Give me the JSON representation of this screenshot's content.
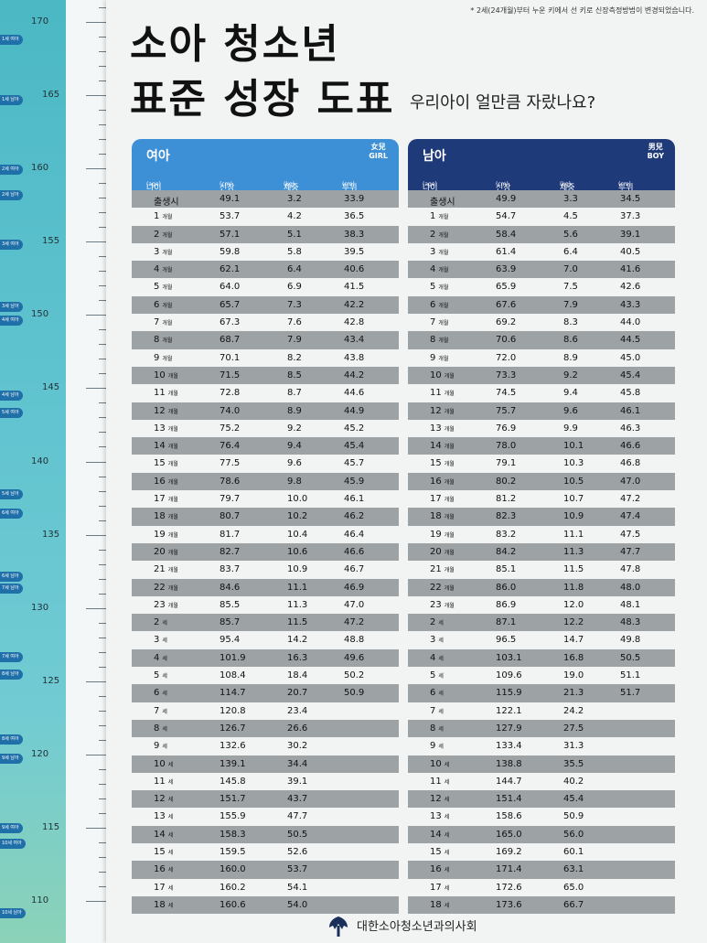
{
  "note": "* 2세(24개월)부터 누운 키에서 선 키로 신장측정방법이 변경되었습니다.",
  "title_line1": "소아 청소년",
  "title_line2": "표준 성장 도표",
  "subtitle": "우리아이 얼만큼 자랐나요?",
  "ruler": {
    "labels": [
      "170",
      "165",
      "160",
      "155",
      "150",
      "145",
      "140",
      "135",
      "130",
      "125",
      "120",
      "115",
      "110"
    ],
    "tags": [
      "1세 여아",
      "1세 남아",
      "2세 여아",
      "2세 남아",
      "3세 여아",
      "3세 남아",
      "4세 여아",
      "4세 남아",
      "5세 여아",
      "5세 남아",
      "6세 여아",
      "6세 남아",
      "7세 남아",
      "7세 여아",
      "8세 남아",
      "8세 여아",
      "9세 남아",
      "9세 여아",
      "10세 여아",
      "10세 남아"
    ]
  },
  "columns": {
    "age": "나이",
    "age_unit": "(age)",
    "height": "신장",
    "height_unit": "(cm)",
    "weight": "체중",
    "weight_unit": "(kg)",
    "head": "두위",
    "head_unit": "(cm)"
  },
  "girl": {
    "title": "여아",
    "hanja": "女兒",
    "en": "GIRL",
    "rows": [
      {
        "age": "출생시",
        "unit": "",
        "height": "49.1",
        "weight": "3.2",
        "head": "33.9"
      },
      {
        "age": "1",
        "unit": "개월",
        "height": "53.7",
        "weight": "4.2",
        "head": "36.5"
      },
      {
        "age": "2",
        "unit": "개월",
        "height": "57.1",
        "weight": "5.1",
        "head": "38.3"
      },
      {
        "age": "3",
        "unit": "개월",
        "height": "59.8",
        "weight": "5.8",
        "head": "39.5"
      },
      {
        "age": "4",
        "unit": "개월",
        "height": "62.1",
        "weight": "6.4",
        "head": "40.6"
      },
      {
        "age": "5",
        "unit": "개월",
        "height": "64.0",
        "weight": "6.9",
        "head": "41.5"
      },
      {
        "age": "6",
        "unit": "개월",
        "height": "65.7",
        "weight": "7.3",
        "head": "42.2"
      },
      {
        "age": "7",
        "unit": "개월",
        "height": "67.3",
        "weight": "7.6",
        "head": "42.8"
      },
      {
        "age": "8",
        "unit": "개월",
        "height": "68.7",
        "weight": "7.9",
        "head": "43.4"
      },
      {
        "age": "9",
        "unit": "개월",
        "height": "70.1",
        "weight": "8.2",
        "head": "43.8"
      },
      {
        "age": "10",
        "unit": "개월",
        "height": "71.5",
        "weight": "8.5",
        "head": "44.2"
      },
      {
        "age": "11",
        "unit": "개월",
        "height": "72.8",
        "weight": "8.7",
        "head": "44.6"
      },
      {
        "age": "12",
        "unit": "개월",
        "height": "74.0",
        "weight": "8.9",
        "head": "44.9"
      },
      {
        "age": "13",
        "unit": "개월",
        "height": "75.2",
        "weight": "9.2",
        "head": "45.2"
      },
      {
        "age": "14",
        "unit": "개월",
        "height": "76.4",
        "weight": "9.4",
        "head": "45.4"
      },
      {
        "age": "15",
        "unit": "개월",
        "height": "77.5",
        "weight": "9.6",
        "head": "45.7"
      },
      {
        "age": "16",
        "unit": "개월",
        "height": "78.6",
        "weight": "9.8",
        "head": "45.9"
      },
      {
        "age": "17",
        "unit": "개월",
        "height": "79.7",
        "weight": "10.0",
        "head": "46.1"
      },
      {
        "age": "18",
        "unit": "개월",
        "height": "80.7",
        "weight": "10.2",
        "head": "46.2"
      },
      {
        "age": "19",
        "unit": "개월",
        "height": "81.7",
        "weight": "10.4",
        "head": "46.4"
      },
      {
        "age": "20",
        "unit": "개월",
        "height": "82.7",
        "weight": "10.6",
        "head": "46.6"
      },
      {
        "age": "21",
        "unit": "개월",
        "height": "83.7",
        "weight": "10.9",
        "head": "46.7"
      },
      {
        "age": "22",
        "unit": "개월",
        "height": "84.6",
        "weight": "11.1",
        "head": "46.9"
      },
      {
        "age": "23",
        "unit": "개월",
        "height": "85.5",
        "weight": "11.3",
        "head": "47.0"
      },
      {
        "age": "2",
        "unit": "세",
        "height": "85.7",
        "weight": "11.5",
        "head": "47.2"
      },
      {
        "age": "3",
        "unit": "세",
        "height": "95.4",
        "weight": "14.2",
        "head": "48.8"
      },
      {
        "age": "4",
        "unit": "세",
        "height": "101.9",
        "weight": "16.3",
        "head": "49.6"
      },
      {
        "age": "5",
        "unit": "세",
        "height": "108.4",
        "weight": "18.4",
        "head": "50.2"
      },
      {
        "age": "6",
        "unit": "세",
        "height": "114.7",
        "weight": "20.7",
        "head": "50.9"
      },
      {
        "age": "7",
        "unit": "세",
        "height": "120.8",
        "weight": "23.4",
        "head": ""
      },
      {
        "age": "8",
        "unit": "세",
        "height": "126.7",
        "weight": "26.6",
        "head": ""
      },
      {
        "age": "9",
        "unit": "세",
        "height": "132.6",
        "weight": "30.2",
        "head": ""
      },
      {
        "age": "10",
        "unit": "세",
        "height": "139.1",
        "weight": "34.4",
        "head": ""
      },
      {
        "age": "11",
        "unit": "세",
        "height": "145.8",
        "weight": "39.1",
        "head": ""
      },
      {
        "age": "12",
        "unit": "세",
        "height": "151.7",
        "weight": "43.7",
        "head": ""
      },
      {
        "age": "13",
        "unit": "세",
        "height": "155.9",
        "weight": "47.7",
        "head": ""
      },
      {
        "age": "14",
        "unit": "세",
        "height": "158.3",
        "weight": "50.5",
        "head": ""
      },
      {
        "age": "15",
        "unit": "세",
        "height": "159.5",
        "weight": "52.6",
        "head": ""
      },
      {
        "age": "16",
        "unit": "세",
        "height": "160.0",
        "weight": "53.7",
        "head": ""
      },
      {
        "age": "17",
        "unit": "세",
        "height": "160.2",
        "weight": "54.1",
        "head": ""
      },
      {
        "age": "18",
        "unit": "세",
        "height": "160.6",
        "weight": "54.0",
        "head": ""
      }
    ]
  },
  "boy": {
    "title": "남아",
    "hanja": "男兒",
    "en": "BOY",
    "rows": [
      {
        "age": "출생시",
        "unit": "",
        "height": "49.9",
        "weight": "3.3",
        "head": "34.5"
      },
      {
        "age": "1",
        "unit": "개월",
        "height": "54.7",
        "weight": "4.5",
        "head": "37.3"
      },
      {
        "age": "2",
        "unit": "개월",
        "height": "58.4",
        "weight": "5.6",
        "head": "39.1"
      },
      {
        "age": "3",
        "unit": "개월",
        "height": "61.4",
        "weight": "6.4",
        "head": "40.5"
      },
      {
        "age": "4",
        "unit": "개월",
        "height": "63.9",
        "weight": "7.0",
        "head": "41.6"
      },
      {
        "age": "5",
        "unit": "개월",
        "height": "65.9",
        "weight": "7.5",
        "head": "42.6"
      },
      {
        "age": "6",
        "unit": "개월",
        "height": "67.6",
        "weight": "7.9",
        "head": "43.3"
      },
      {
        "age": "7",
        "unit": "개월",
        "height": "69.2",
        "weight": "8.3",
        "head": "44.0"
      },
      {
        "age": "8",
        "unit": "개월",
        "height": "70.6",
        "weight": "8.6",
        "head": "44.5"
      },
      {
        "age": "9",
        "unit": "개월",
        "height": "72.0",
        "weight": "8.9",
        "head": "45.0"
      },
      {
        "age": "10",
        "unit": "개월",
        "height": "73.3",
        "weight": "9.2",
        "head": "45.4"
      },
      {
        "age": "11",
        "unit": "개월",
        "height": "74.5",
        "weight": "9.4",
        "head": "45.8"
      },
      {
        "age": "12",
        "unit": "개월",
        "height": "75.7",
        "weight": "9.6",
        "head": "46.1"
      },
      {
        "age": "13",
        "unit": "개월",
        "height": "76.9",
        "weight": "9.9",
        "head": "46.3"
      },
      {
        "age": "14",
        "unit": "개월",
        "height": "78.0",
        "weight": "10.1",
        "head": "46.6"
      },
      {
        "age": "15",
        "unit": "개월",
        "height": "79.1",
        "weight": "10.3",
        "head": "46.8"
      },
      {
        "age": "16",
        "unit": "개월",
        "height": "80.2",
        "weight": "10.5",
        "head": "47.0"
      },
      {
        "age": "17",
        "unit": "개월",
        "height": "81.2",
        "weight": "10.7",
        "head": "47.2"
      },
      {
        "age": "18",
        "unit": "개월",
        "height": "82.3",
        "weight": "10.9",
        "head": "47.4"
      },
      {
        "age": "19",
        "unit": "개월",
        "height": "83.2",
        "weight": "11.1",
        "head": "47.5"
      },
      {
        "age": "20",
        "unit": "개월",
        "height": "84.2",
        "weight": "11.3",
        "head": "47.7"
      },
      {
        "age": "21",
        "unit": "개월",
        "height": "85.1",
        "weight": "11.5",
        "head": "47.8"
      },
      {
        "age": "22",
        "unit": "개월",
        "height": "86.0",
        "weight": "11.8",
        "head": "48.0"
      },
      {
        "age": "23",
        "unit": "개월",
        "height": "86.9",
        "weight": "12.0",
        "head": "48.1"
      },
      {
        "age": "2",
        "unit": "세",
        "height": "87.1",
        "weight": "12.2",
        "head": "48.3"
      },
      {
        "age": "3",
        "unit": "세",
        "height": "96.5",
        "weight": "14.7",
        "head": "49.8"
      },
      {
        "age": "4",
        "unit": "세",
        "height": "103.1",
        "weight": "16.8",
        "head": "50.5"
      },
      {
        "age": "5",
        "unit": "세",
        "height": "109.6",
        "weight": "19.0",
        "head": "51.1"
      },
      {
        "age": "6",
        "unit": "세",
        "height": "115.9",
        "weight": "21.3",
        "head": "51.7"
      },
      {
        "age": "7",
        "unit": "세",
        "height": "122.1",
        "weight": "24.2",
        "head": ""
      },
      {
        "age": "8",
        "unit": "세",
        "height": "127.9",
        "weight": "27.5",
        "head": ""
      },
      {
        "age": "9",
        "unit": "세",
        "height": "133.4",
        "weight": "31.3",
        "head": ""
      },
      {
        "age": "10",
        "unit": "세",
        "height": "138.8",
        "weight": "35.5",
        "head": ""
      },
      {
        "age": "11",
        "unit": "세",
        "height": "144.7",
        "weight": "40.2",
        "head": ""
      },
      {
        "age": "12",
        "unit": "세",
        "height": "151.4",
        "weight": "45.4",
        "head": ""
      },
      {
        "age": "13",
        "unit": "세",
        "height": "158.6",
        "weight": "50.9",
        "head": ""
      },
      {
        "age": "14",
        "unit": "세",
        "height": "165.0",
        "weight": "56.0",
        "head": ""
      },
      {
        "age": "15",
        "unit": "세",
        "height": "169.2",
        "weight": "60.1",
        "head": ""
      },
      {
        "age": "16",
        "unit": "세",
        "height": "171.4",
        "weight": "63.1",
        "head": ""
      },
      {
        "age": "17",
        "unit": "세",
        "height": "172.6",
        "weight": "65.0",
        "head": ""
      },
      {
        "age": "18",
        "unit": "세",
        "height": "173.6",
        "weight": "66.7",
        "head": ""
      }
    ]
  },
  "footer": "대한소아청소년과의사회",
  "colors": {
    "girl": "#3d8fd6",
    "boy": "#1f3a78",
    "shade": "#9da2a5"
  }
}
